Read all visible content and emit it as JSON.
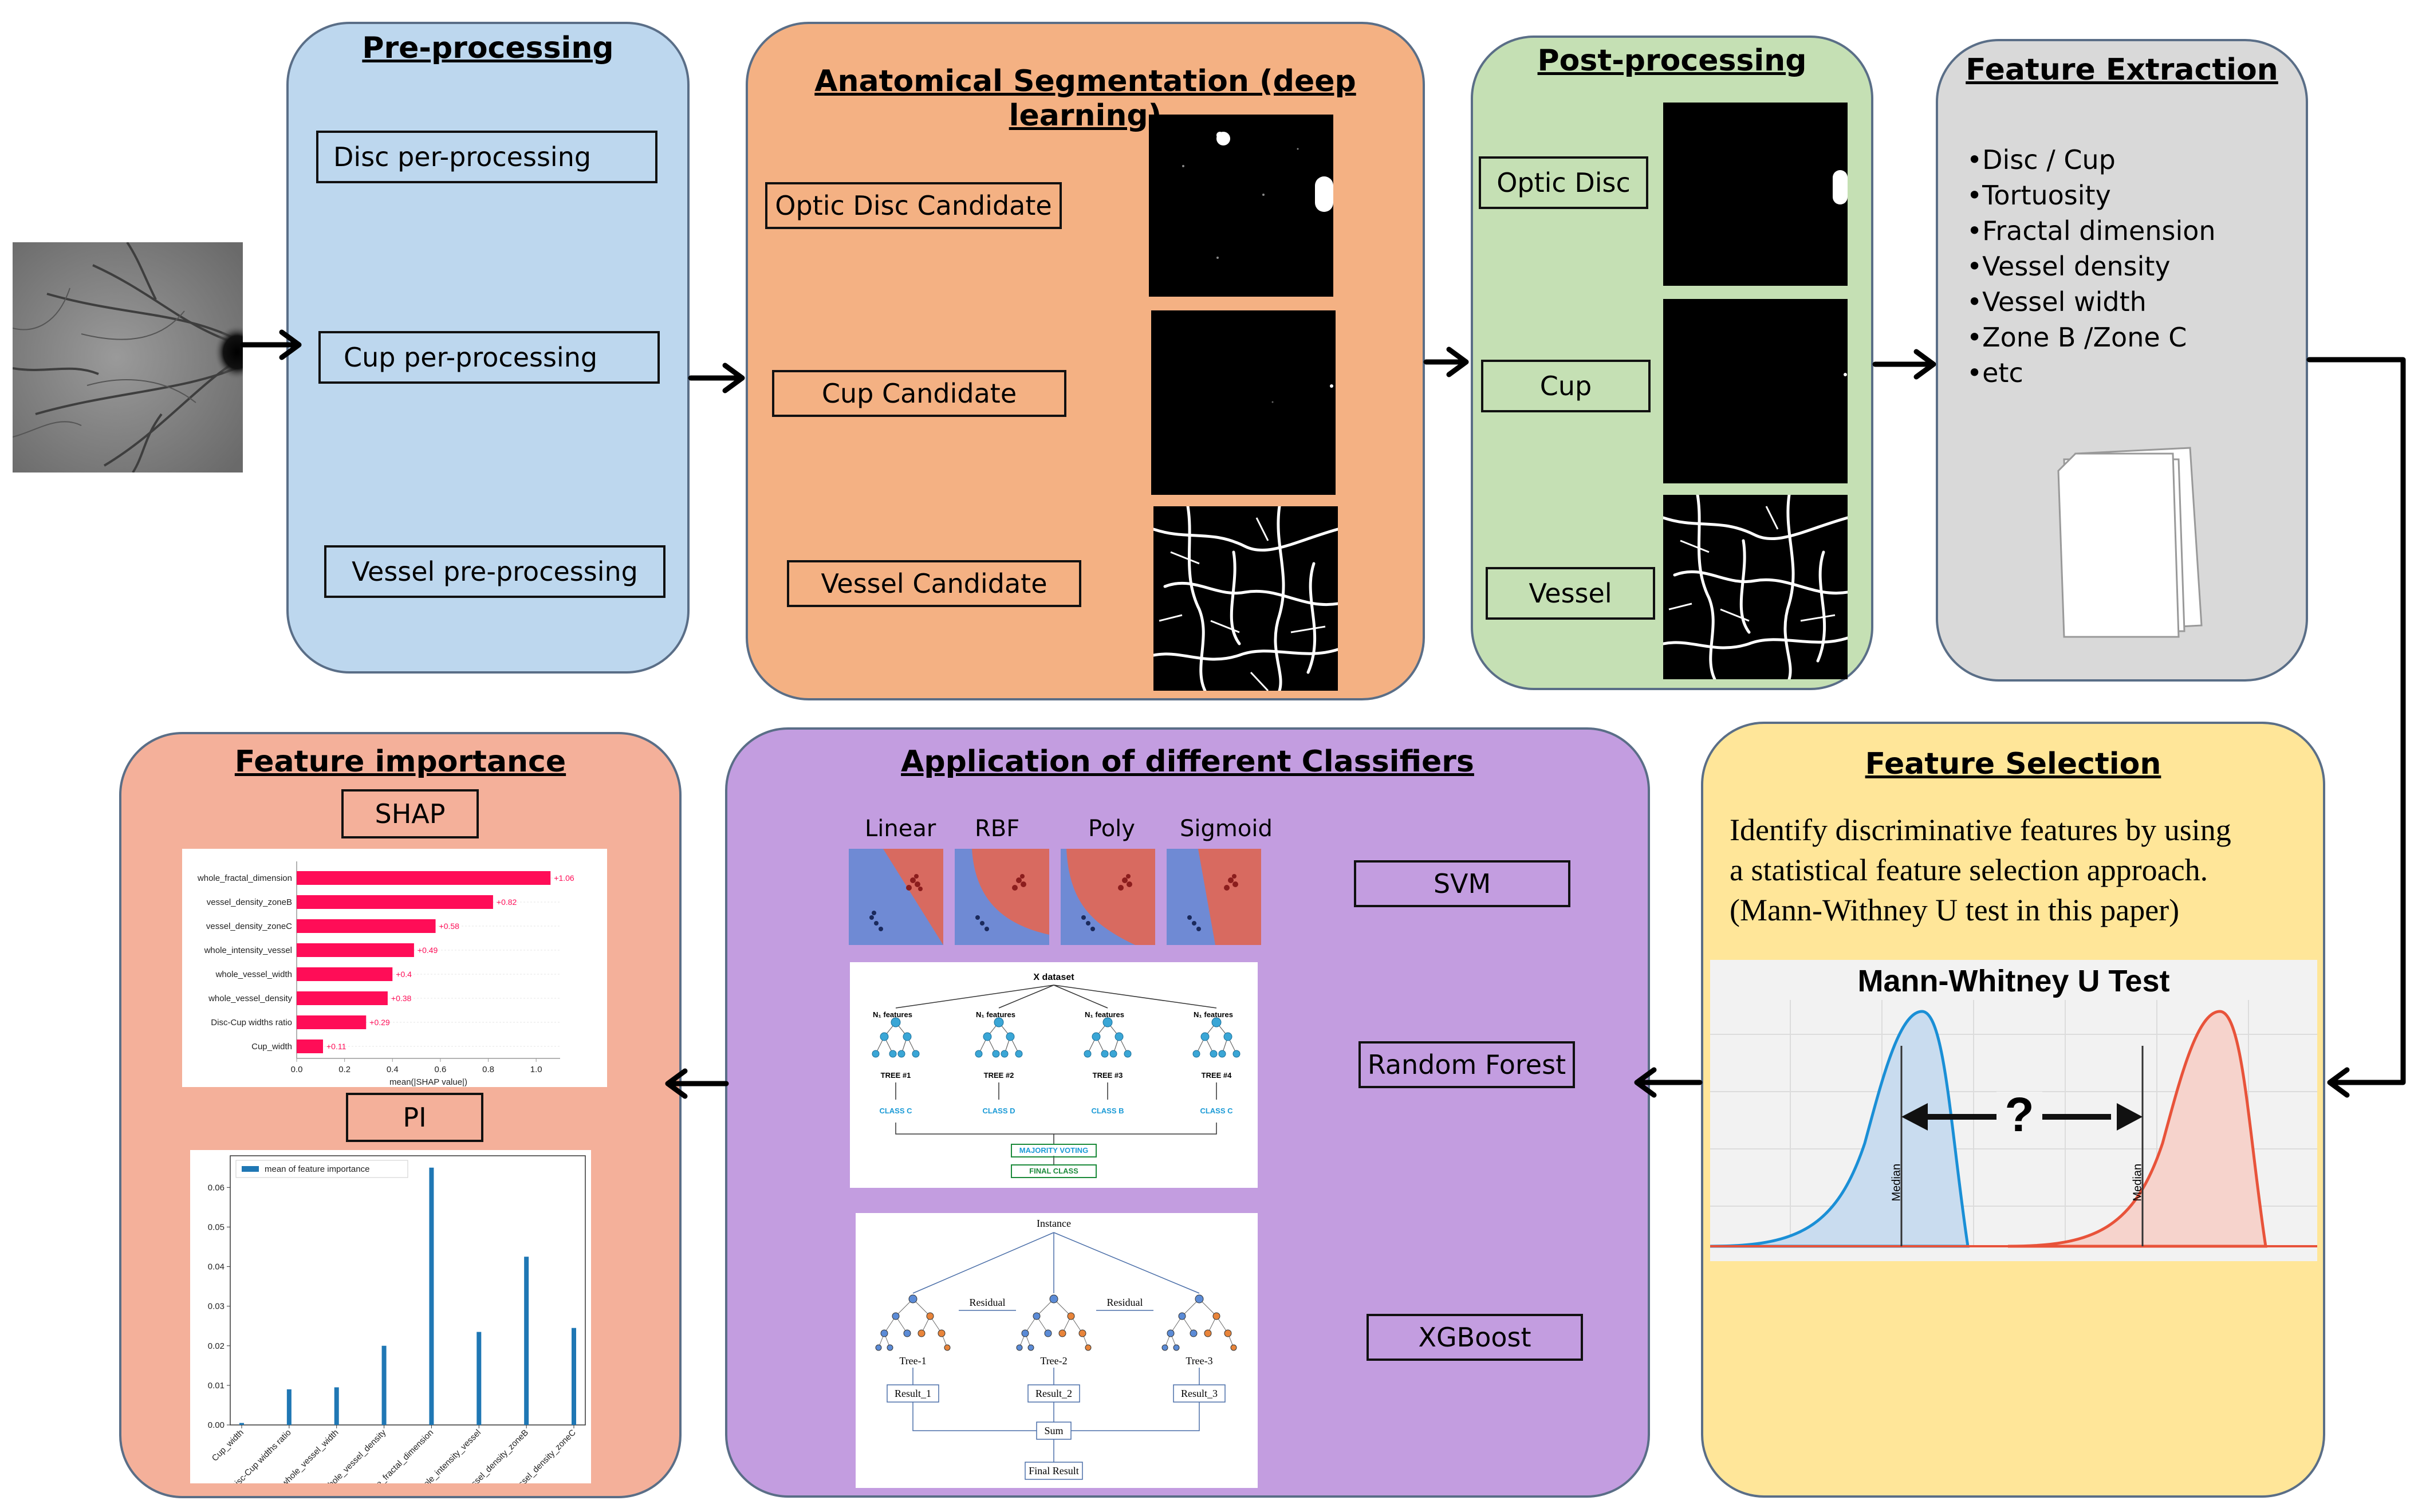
{
  "input_image": {
    "icon": "retina-fundus-image"
  },
  "preprocessing": {
    "title": "Pre-processing",
    "boxes": [
      "Disc per-processing",
      "Cup per-processing",
      "Vessel pre-processing"
    ]
  },
  "segmentation": {
    "title": "Anatomical Segmentation (deep learning)",
    "boxes": [
      "Optic Disc Candidate",
      "Cup Candidate",
      "Vessel Candidate"
    ]
  },
  "postprocessing": {
    "title": "Post-processing",
    "boxes": [
      "Optic Disc",
      "Cup",
      "Vessel"
    ]
  },
  "feature_extraction": {
    "title": "Feature Extraction",
    "items": [
      "•Disc / Cup",
      "•Tortuosity",
      "•Fractal dimension",
      "•Vessel density",
      "•Vessel width",
      "•Zone B /Zone C",
      "•etc"
    ],
    "icon": "document-stack-icon"
  },
  "feature_selection": {
    "title": "Feature Selection",
    "text_lines": [
      "Identify discriminative features by using",
      "a statistical feature selection approach.",
      "(Mann-Withney U test in this paper)"
    ],
    "chart_title": "Mann-Whitney U Test",
    "median_label": "Median",
    "question": "?"
  },
  "classifiers": {
    "title": "Application of different Classifiers",
    "kernels": [
      "Linear",
      "RBF",
      "Poly",
      "Sigmoid"
    ],
    "boxes": [
      "SVM",
      "Random Forest",
      "XGBoost"
    ],
    "rf": {
      "dataset": "X dataset",
      "features": "N₁ features",
      "trees": [
        "TREE #1",
        "TREE #2",
        "TREE #3",
        "TREE #4"
      ],
      "classes": [
        "CLASS C",
        "CLASS D",
        "CLASS B",
        "CLASS C"
      ],
      "majority": "MAJORITY VOTING",
      "final": "FINAL CLASS"
    },
    "xgb": {
      "instance": "Instance",
      "residual": "Residual",
      "trees": [
        "Tree-1",
        "Tree-2",
        "Tree-3"
      ],
      "results": [
        "Result_1",
        "Result_2",
        "Result_3"
      ],
      "sum": "Sum",
      "final": "Final Result"
    }
  },
  "feature_importance": {
    "title": "Feature importance",
    "shap_label": "SHAP",
    "pi_label": "PI"
  },
  "chart_data": [
    {
      "type": "bar",
      "orientation": "horizontal",
      "title": "SHAP",
      "categories": [
        "whole_fractal_dimension",
        "vessel_density_zoneB",
        "vessel_density_zoneC",
        "whole_intensity_vessel",
        "whole_vessel_width",
        "whole_vessel_density",
        "Disc-Cup widths ratio",
        "Cup_width"
      ],
      "values": [
        1.06,
        0.82,
        0.58,
        0.49,
        0.4,
        0.38,
        0.29,
        0.11
      ],
      "value_labels": [
        "+1.06",
        "+0.82",
        "+0.58",
        "+0.49",
        "+0.4",
        "+0.38",
        "+0.29",
        "+0.11"
      ],
      "xlabel": "mean(|SHAP value|)",
      "xticks": [
        "0.0",
        "0.2",
        "0.4",
        "0.6",
        "0.8",
        "1.0"
      ],
      "xlim": [
        0,
        1.1
      ],
      "color": "#ff0d57"
    },
    {
      "type": "bar",
      "title": "PI",
      "categories": [
        "Cup_width",
        "Disc-Cup widths ratio",
        "whole_vessel_width",
        "whole_vessel_density",
        "whole_fractal_dimension",
        "whole_intensity_vessel",
        "vessel_density_zoneB",
        "vessel_density_zoneC"
      ],
      "values": [
        0.0005,
        0.009,
        0.0095,
        0.02,
        0.065,
        0.0235,
        0.0425,
        0.0245
      ],
      "legend": "mean of feature importance",
      "yticks": [
        "0.00",
        "0.01",
        "0.02",
        "0.03",
        "0.04",
        "0.05",
        "0.06"
      ],
      "ylim": [
        0,
        0.068
      ],
      "color": "#1f77b4"
    }
  ]
}
